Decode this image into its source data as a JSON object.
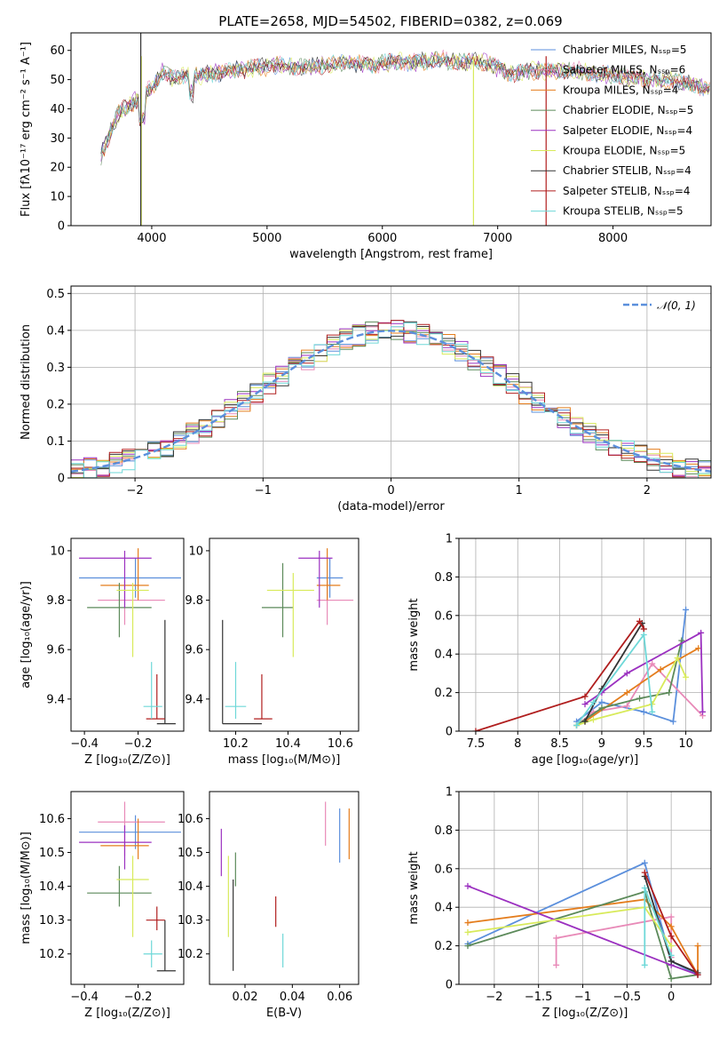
{
  "colors": {
    "Chabrier MILES": "#5b8fdc",
    "Salpeter MILES": "#e88ab8",
    "Kroupa MILES": "#e47d1d",
    "Chabrier ELODIE": "#5c8a5a",
    "Salpeter ELODIE": "#9b30c0",
    "Kroupa ELODIE": "#d8ea5a",
    "Chabrier STELIB": "#333333",
    "Salpeter STELIB": "#b01e1e",
    "Kroupa STELIB": "#6ed8d8",
    "axis": "#000000",
    "grid": "#b0b0b0"
  },
  "chart_data": [
    {
      "id": "spectrum",
      "type": "line",
      "title": "PLATE=2658, MJD=54502, FIBERID=0382, z=0.069",
      "xlabel": "wavelength [Angstrom, rest frame]",
      "ylabel": "Flux [fλ10⁻¹⁷ erg cm⁻² s⁻¹ A⁻¹]",
      "xlim": [
        3300,
        8850
      ],
      "ylim": [
        0,
        66
      ],
      "xticks": [
        4000,
        5000,
        6000,
        7000,
        8000
      ],
      "yticks": [
        0,
        10,
        20,
        30,
        40,
        50,
        60
      ],
      "grid": false,
      "legend_position": "top-right",
      "legend": [
        "Chabrier MILES, Nₛₛₚ=5",
        "Salpeter MILES, Nₛₛₚ=6",
        "Kroupa MILES, Nₛₛₚ=4",
        "Chabrier ELODIE, Nₛₛₚ=5",
        "Salpeter ELODIE, Nₛₛₚ=4",
        "Kroupa ELODIE, Nₛₛₚ=5",
        "Chabrier STELIB, Nₛₛₚ=4",
        "Salpeter STELIB, Nₛₛₚ=4",
        "Kroupa STELIB, Nₛₛₚ=5"
      ],
      "x": [
        3560,
        3620,
        3700,
        3800,
        3900,
        4000,
        4100,
        4200,
        4300,
        4400,
        4500,
        4700,
        4900,
        5100,
        5300,
        5500,
        5700,
        5900,
        6100,
        6300,
        6500,
        6700,
        6900,
        7100,
        7300,
        7500,
        7700,
        7900,
        8100,
        8300,
        8500,
        8700,
        8850
      ],
      "y": [
        24,
        30,
        38,
        41,
        44,
        47,
        53,
        50,
        52,
        51,
        52,
        53,
        54,
        55,
        54,
        55,
        56,
        55,
        56,
        56,
        57,
        56,
        56,
        52,
        53,
        53,
        53,
        52,
        51,
        50,
        50,
        48,
        47
      ],
      "drop_lines_x": [
        3910,
        3905,
        6790,
        7420
      ]
    },
    {
      "id": "residuals",
      "type": "step",
      "xlabel": "(data-model)/error",
      "ylabel": "Normed distribution",
      "xlim": [
        -2.5,
        2.5
      ],
      "ylim": [
        0,
        0.52
      ],
      "xticks": [
        -2,
        -1,
        0,
        1,
        2
      ],
      "yticks": [
        0.0,
        0.1,
        0.2,
        0.3,
        0.4,
        0.5
      ],
      "grid": true,
      "legend_position": "top-right",
      "legend": [
        "𝒩(0, 1)"
      ],
      "gaussian": {
        "mean": 0,
        "sigma": 1,
        "color": "#5b8fdc"
      }
    },
    {
      "id": "age-vs-Z",
      "type": "errorbar",
      "xlabel": "Z [log₁₀(Z/Z⊙)]",
      "ylabel": "age  [log₁₀(age/yr)]",
      "xlim": [
        -0.45,
        -0.03
      ],
      "ylim": [
        9.27,
        10.05
      ],
      "xticks": [
        -0.4,
        -0.2
      ],
      "yticks": [
        9.4,
        9.6,
        9.8,
        10.0
      ],
      "points": [
        {
          "m": "Chabrier MILES",
          "x": -0.21,
          "y": 9.89,
          "xerr": [
            0.21,
            0.17
          ],
          "yerr": [
            0.08,
            0.08
          ]
        },
        {
          "m": "Salpeter MILES",
          "x": -0.25,
          "y": 9.8,
          "xerr": [
            0.1,
            0.15
          ],
          "yerr": [
            0.1,
            0.08
          ]
        },
        {
          "m": "Kroupa MILES",
          "x": -0.2,
          "y": 9.86,
          "xerr": [
            0.14,
            0.04
          ],
          "yerr": [
            0.06,
            0.15
          ]
        },
        {
          "m": "Chabrier ELODIE",
          "x": -0.27,
          "y": 9.77,
          "xerr": [
            0.12,
            0.12
          ],
          "yerr": [
            0.12,
            0.1
          ]
        },
        {
          "m": "Salpeter ELODIE",
          "x": -0.25,
          "y": 9.97,
          "xerr": [
            0.17,
            0.1
          ],
          "yerr": [
            0.2,
            0.03
          ]
        },
        {
          "m": "Kroupa ELODIE",
          "x": -0.22,
          "y": 9.84,
          "xerr": [
            0.06,
            0.06
          ],
          "yerr": [
            0.27,
            0.03
          ]
        },
        {
          "m": "Chabrier STELIB",
          "x": -0.1,
          "y": 9.3,
          "xerr": [
            0.03,
            0.04
          ],
          "yerr": [
            0.0,
            0.42
          ]
        },
        {
          "m": "Salpeter STELIB",
          "x": -0.13,
          "y": 9.32,
          "xerr": [
            0.04,
            0.03
          ],
          "yerr": [
            0.0,
            0.18
          ]
        },
        {
          "m": "Kroupa STELIB",
          "x": -0.15,
          "y": 9.37,
          "xerr": [
            0.03,
            0.04
          ],
          "yerr": [
            0.05,
            0.18
          ]
        }
      ]
    },
    {
      "id": "age-vs-mass",
      "type": "errorbar",
      "xlabel": "mass [log₁₀(M/M⊙)]",
      "ylabel": "",
      "xlim": [
        10.1,
        10.67
      ],
      "ylim": [
        9.27,
        10.05
      ],
      "xticks": [
        10.2,
        10.4,
        10.6
      ],
      "yticks": [
        9.4,
        9.6,
        9.8,
        10.0
      ],
      "points": [
        {
          "m": "Chabrier MILES",
          "x": 10.56,
          "y": 9.89,
          "xerr": [
            0.05,
            0.05
          ],
          "yerr": [
            0.08,
            0.08
          ]
        },
        {
          "m": "Salpeter MILES",
          "x": 10.55,
          "y": 9.8,
          "xerr": [
            0.04,
            0.1
          ],
          "yerr": [
            0.1,
            0.08
          ]
        },
        {
          "m": "Kroupa MILES",
          "x": 10.55,
          "y": 9.86,
          "xerr": [
            0.04,
            0.05
          ],
          "yerr": [
            0.06,
            0.15
          ]
        },
        {
          "m": "Chabrier ELODIE",
          "x": 10.38,
          "y": 9.77,
          "xerr": [
            0.08,
            0.04
          ],
          "yerr": [
            0.12,
            0.18
          ]
        },
        {
          "m": "Salpeter ELODIE",
          "x": 10.52,
          "y": 9.97,
          "xerr": [
            0.08,
            0.05
          ],
          "yerr": [
            0.2,
            0.03
          ]
        },
        {
          "m": "Kroupa ELODIE",
          "x": 10.42,
          "y": 9.84,
          "xerr": [
            0.1,
            0.08
          ],
          "yerr": [
            0.27,
            0.07
          ]
        },
        {
          "m": "Chabrier STELIB",
          "x": 10.15,
          "y": 9.3,
          "xerr": [
            0.0,
            0.15
          ],
          "yerr": [
            0.0,
            0.42
          ]
        },
        {
          "m": "Salpeter STELIB",
          "x": 10.3,
          "y": 9.32,
          "xerr": [
            0.03,
            0.04
          ],
          "yerr": [
            0.0,
            0.18
          ]
        },
        {
          "m": "Kroupa STELIB",
          "x": 10.2,
          "y": 9.37,
          "xerr": [
            0.04,
            0.04
          ],
          "yerr": [
            0.05,
            0.18
          ]
        }
      ]
    },
    {
      "id": "weight-vs-age",
      "type": "line",
      "xlabel": "age  [log₁₀(age/yr)]",
      "ylabel": "mass weight",
      "xlim": [
        7.3,
        10.3
      ],
      "ylim": [
        0,
        1.0
      ],
      "xticks": [
        7.5,
        8.0,
        8.5,
        9.0,
        9.5,
        10.0
      ],
      "yticks": [
        0.0,
        0.2,
        0.4,
        0.6,
        0.8,
        1.0
      ],
      "grid": true,
      "series": [
        {
          "m": "Chabrier MILES",
          "x": [
            8.7,
            9.0,
            9.5,
            9.85,
            10.0
          ],
          "y": [
            0.05,
            0.15,
            0.1,
            0.05,
            0.63
          ]
        },
        {
          "m": "Salpeter MILES",
          "x": [
            8.7,
            8.9,
            9.3,
            9.6,
            10.2
          ],
          "y": [
            0.03,
            0.1,
            0.13,
            0.35,
            0.08
          ]
        },
        {
          "m": "Kroupa MILES",
          "x": [
            8.8,
            9.3,
            9.7,
            10.15
          ],
          "y": [
            0.05,
            0.2,
            0.32,
            0.43
          ]
        },
        {
          "m": "Chabrier ELODIE",
          "x": [
            8.7,
            9.0,
            9.45,
            9.8,
            9.95
          ],
          "y": [
            0.03,
            0.12,
            0.17,
            0.2,
            0.47
          ]
        },
        {
          "m": "Salpeter ELODIE",
          "x": [
            8.8,
            9.0,
            9.3,
            10.18,
            10.2
          ],
          "y": [
            0.14,
            0.2,
            0.3,
            0.51,
            0.1
          ]
        },
        {
          "m": "Kroupa ELODIE",
          "x": [
            8.7,
            8.9,
            9.6,
            9.9,
            10.0
          ],
          "y": [
            0.03,
            0.06,
            0.14,
            0.38,
            0.28
          ]
        },
        {
          "m": "Chabrier STELIB",
          "x": [
            8.8,
            9.0,
            9.48,
            9.5
          ],
          "y": [
            0.05,
            0.22,
            0.56,
            0.53
          ]
        },
        {
          "m": "Salpeter STELIB",
          "x": [
            7.5,
            8.8,
            9.45,
            9.5
          ],
          "y": [
            0.0,
            0.18,
            0.57,
            0.53
          ]
        },
        {
          "m": "Kroupa STELIB",
          "x": [
            8.7,
            8.9,
            9.5,
            9.6
          ],
          "y": [
            0.03,
            0.15,
            0.5,
            0.1
          ]
        }
      ]
    },
    {
      "id": "mass-vs-Z",
      "type": "errorbar",
      "xlabel": "Z [log₁₀(Z/Z⊙)]",
      "ylabel": "mass [log₁₀(M/M⊙)]",
      "xlim": [
        -0.45,
        -0.03
      ],
      "ylim": [
        10.11,
        10.68
      ],
      "xticks": [
        -0.4,
        -0.2
      ],
      "yticks": [
        10.2,
        10.3,
        10.4,
        10.5,
        10.6
      ],
      "points": [
        {
          "m": "Chabrier MILES",
          "x": -0.21,
          "y": 10.56,
          "xerr": [
            0.21,
            0.17
          ],
          "yerr": [
            0.05,
            0.05
          ]
        },
        {
          "m": "Salpeter MILES",
          "x": -0.25,
          "y": 10.59,
          "xerr": [
            0.1,
            0.15
          ],
          "yerr": [
            0.1,
            0.06
          ]
        },
        {
          "m": "Kroupa MILES",
          "x": -0.2,
          "y": 10.52,
          "xerr": [
            0.14,
            0.04
          ],
          "yerr": [
            0.04,
            0.08
          ]
        },
        {
          "m": "Chabrier ELODIE",
          "x": -0.27,
          "y": 10.38,
          "xerr": [
            0.12,
            0.12
          ],
          "yerr": [
            0.04,
            0.08
          ]
        },
        {
          "m": "Salpeter ELODIE",
          "x": -0.25,
          "y": 10.53,
          "xerr": [
            0.17,
            0.1
          ],
          "yerr": [
            0.08,
            0.05
          ]
        },
        {
          "m": "Kroupa ELODIE",
          "x": -0.22,
          "y": 10.42,
          "xerr": [
            0.06,
            0.06
          ],
          "yerr": [
            0.17,
            0.07
          ]
        },
        {
          "m": "Chabrier STELIB",
          "x": -0.1,
          "y": 10.15,
          "xerr": [
            0.03,
            0.04
          ],
          "yerr": [
            0.0,
            0.15
          ]
        },
        {
          "m": "Salpeter STELIB",
          "x": -0.13,
          "y": 10.3,
          "xerr": [
            0.04,
            0.03
          ],
          "yerr": [
            0.03,
            0.04
          ]
        },
        {
          "m": "Kroupa STELIB",
          "x": -0.15,
          "y": 10.2,
          "xerr": [
            0.03,
            0.04
          ],
          "yerr": [
            0.04,
            0.04
          ]
        }
      ]
    },
    {
      "id": "mass-vs-EBV",
      "type": "errorbar",
      "xlabel": "E(B-V)",
      "ylabel": "",
      "xlim": [
        0.005,
        0.068
      ],
      "ylim": [
        10.11,
        10.68
      ],
      "xticks": [
        0.02,
        0.04,
        0.06
      ],
      "yticks": [
        10.2,
        10.3,
        10.4,
        10.5,
        10.6
      ],
      "points": [
        {
          "m": "Chabrier MILES",
          "x": 0.06,
          "y": 10.56,
          "xerr": [
            0,
            0
          ],
          "yerr": [
            0.09,
            0.07
          ]
        },
        {
          "m": "Salpeter MILES",
          "x": 0.054,
          "y": 10.58,
          "xerr": [
            0,
            0
          ],
          "yerr": [
            0.06,
            0.07
          ]
        },
        {
          "m": "Kroupa MILES",
          "x": 0.064,
          "y": 10.55,
          "xerr": [
            0,
            0
          ],
          "yerr": [
            0.07,
            0.08
          ]
        },
        {
          "m": "Chabrier ELODIE",
          "x": 0.016,
          "y": 10.42,
          "xerr": [
            0,
            0
          ],
          "yerr": [
            0.02,
            0.08
          ]
        },
        {
          "m": "Salpeter ELODIE",
          "x": 0.01,
          "y": 10.52,
          "xerr": [
            0,
            0
          ],
          "yerr": [
            0.09,
            0.05
          ]
        },
        {
          "m": "Kroupa ELODIE",
          "x": 0.013,
          "y": 10.4,
          "xerr": [
            0,
            0
          ],
          "yerr": [
            0.15,
            0.09
          ]
        },
        {
          "m": "Chabrier STELIB",
          "x": 0.015,
          "y": 10.15,
          "xerr": [
            0,
            0
          ],
          "yerr": [
            0.0,
            0.27
          ]
        },
        {
          "m": "Salpeter STELIB",
          "x": 0.033,
          "y": 10.33,
          "xerr": [
            0,
            0
          ],
          "yerr": [
            0.05,
            0.04
          ]
        },
        {
          "m": "Kroupa STELIB",
          "x": 0.036,
          "y": 10.2,
          "xerr": [
            0,
            0
          ],
          "yerr": [
            0.04,
            0.06
          ]
        }
      ]
    },
    {
      "id": "weight-vs-Z",
      "type": "line",
      "xlabel": "Z [log₁₀(Z/Z⊙)]",
      "ylabel": "mass weight",
      "xlim": [
        -2.4,
        0.45
      ],
      "ylim": [
        0,
        1.0
      ],
      "xticks": [
        -2.0,
        -1.5,
        -1.0,
        -0.5,
        0.0
      ],
      "yticks": [
        0.0,
        0.2,
        0.4,
        0.6,
        0.8,
        1.0
      ],
      "grid": true,
      "series": [
        {
          "m": "Chabrier MILES",
          "x": [
            -2.3,
            -0.3,
            0.0,
            0.3
          ],
          "y": [
            0.21,
            0.63,
            0.12,
            0.05
          ]
        },
        {
          "m": "Salpeter MILES",
          "x": [
            -1.3,
            -1.3,
            0.0,
            0.0
          ],
          "y": [
            0.1,
            0.24,
            0.35,
            0.14
          ]
        },
        {
          "m": "Kroupa MILES",
          "x": [
            -2.3,
            -0.3,
            0.0,
            0.3,
            0.3
          ],
          "y": [
            0.32,
            0.44,
            0.3,
            0.05,
            0.2
          ]
        },
        {
          "m": "Chabrier ELODIE",
          "x": [
            -2.3,
            -0.3,
            0.0,
            0.3
          ],
          "y": [
            0.2,
            0.48,
            0.03,
            0.05
          ]
        },
        {
          "m": "Salpeter ELODIE",
          "x": [
            -2.3,
            0.0,
            0.3
          ],
          "y": [
            0.51,
            0.1,
            0.05
          ]
        },
        {
          "m": "Kroupa ELODIE",
          "x": [
            -2.3,
            -0.3,
            0.0
          ],
          "y": [
            0.27,
            0.4,
            0.2
          ]
        },
        {
          "m": "Chabrier STELIB",
          "x": [
            -0.3,
            0.0,
            0.3
          ],
          "y": [
            0.56,
            0.12,
            0.06
          ]
        },
        {
          "m": "Salpeter STELIB",
          "x": [
            -0.3,
            0.0,
            0.3
          ],
          "y": [
            0.58,
            0.25,
            0.05
          ]
        },
        {
          "m": "Kroupa STELIB",
          "x": [
            -0.3,
            -0.3,
            0.0
          ],
          "y": [
            0.1,
            0.5,
            0.15
          ]
        }
      ]
    }
  ]
}
